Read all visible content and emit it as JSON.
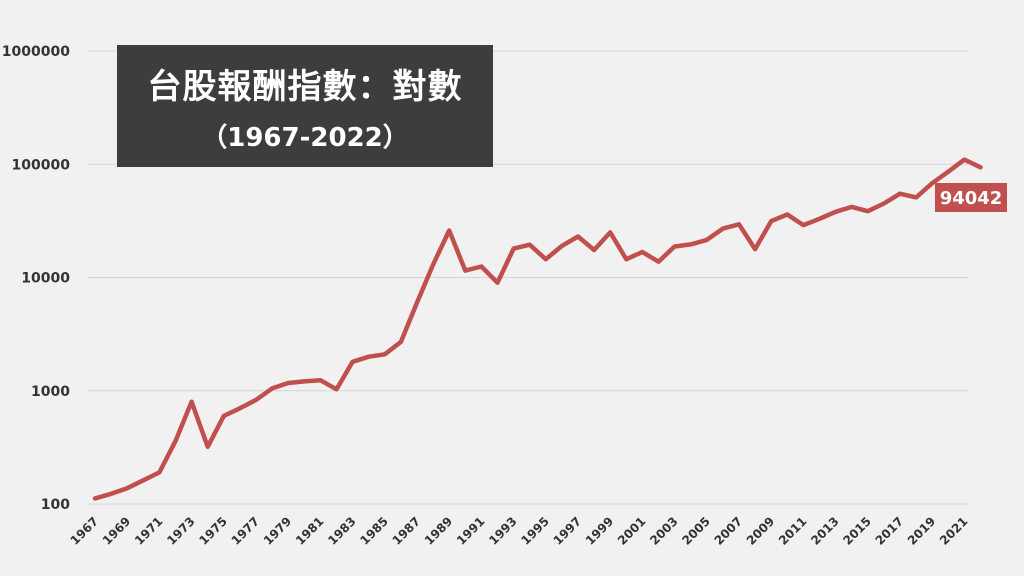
{
  "chart_data": {
    "type": "line",
    "title": "台股報酬指數：對數",
    "subtitle": "（1967-2022）",
    "xlabel": "",
    "ylabel": "",
    "y_scale": "log",
    "ylim": [
      100,
      1000000
    ],
    "y_ticks": [
      100,
      1000,
      10000,
      100000,
      1000000
    ],
    "y_tick_labels": [
      "100",
      "1000",
      "10000",
      "100000",
      "1000000"
    ],
    "x_tick_labels": [
      "1967",
      "1969",
      "1971",
      "1973",
      "1975",
      "1977",
      "1979",
      "1981",
      "1983",
      "1985",
      "1987",
      "1989",
      "1991",
      "1993",
      "1995",
      "1997",
      "1999",
      "2001",
      "2003",
      "2005",
      "2007",
      "2009",
      "2011",
      "2013",
      "2015",
      "2017",
      "2019",
      "2021"
    ],
    "grid": true,
    "line_color": "#c0504d",
    "end_label": "94042",
    "series": [
      {
        "x": [
          1967,
          1968,
          1969,
          1970,
          1971,
          1972,
          1973,
          1974,
          1975,
          1976,
          1977,
          1978,
          1979,
          1980,
          1981,
          1982,
          1983,
          1984,
          1985,
          1986,
          1987,
          1988,
          1989,
          1990,
          1991,
          1992,
          1993,
          1994,
          1995,
          1996,
          1997,
          1998,
          1999,
          2000,
          2001,
          2002,
          2003,
          2004,
          2005,
          2006,
          2007,
          2008,
          2009,
          2010,
          2011,
          2012,
          2013,
          2014,
          2015,
          2016,
          2017,
          2018,
          2019,
          2020,
          2021,
          2022
        ],
        "values": [
          112,
          123,
          138,
          162,
          190,
          360,
          800,
          320,
          600,
          700,
          830,
          1050,
          1170,
          1210,
          1240,
          1030,
          1800,
          2000,
          2100,
          2700,
          6000,
          13000,
          26000,
          11500,
          12500,
          9000,
          18000,
          19500,
          14500,
          19000,
          23000,
          17500,
          25000,
          14500,
          16800,
          13800,
          18800,
          19600,
          21500,
          27000,
          29500,
          17800,
          31500,
          36000,
          29000,
          33000,
          38000,
          42000,
          38500,
          45000,
          55000,
          51000,
          68000,
          86000,
          110000,
          94042
        ]
      }
    ]
  }
}
